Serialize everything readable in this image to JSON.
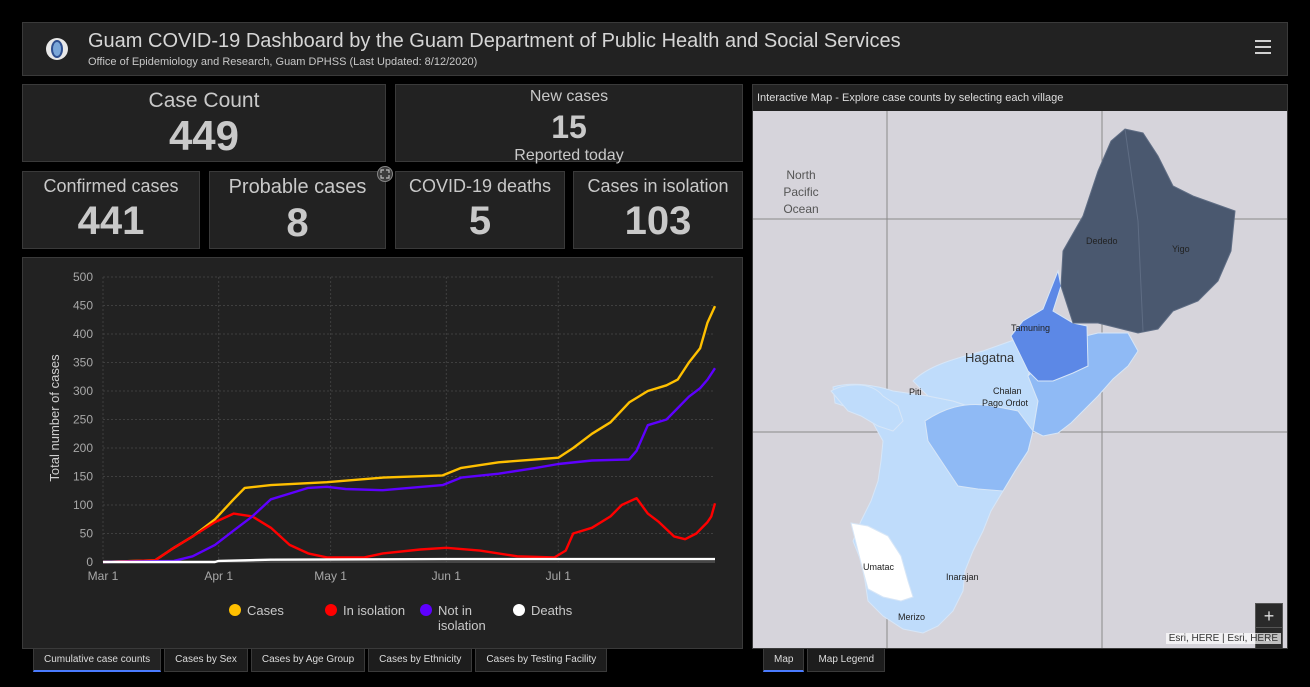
{
  "header": {
    "title": "Guam COVID-19 Dashboard by the Guam Department of Public Health and Social Services",
    "subtitle": "Office of Epidemiology and Research, Guam DPHSS (Last Updated: 8/12/2020)",
    "logo_icon": "guam-seal-icon",
    "menu_icon": "hamburger-menu-icon"
  },
  "indicators": {
    "case_count": {
      "label": "Case Count",
      "value": "449"
    },
    "new_cases": {
      "label": "New cases",
      "value": "15",
      "sublabel": "Reported today"
    },
    "confirmed": {
      "label": "Confirmed cases",
      "value": "441"
    },
    "probable": {
      "label": "Probable cases",
      "value": "8"
    },
    "deaths": {
      "label": "COVID-19 deaths",
      "value": "5"
    },
    "isolation": {
      "label": "Cases in isolation",
      "value": "103"
    }
  },
  "chart_data": {
    "type": "line",
    "title": "",
    "ylabel": "Total number of cases",
    "xlabel": "",
    "ylim": [
      0,
      500
    ],
    "yticks": [
      0,
      50,
      100,
      150,
      200,
      250,
      300,
      350,
      400,
      450,
      500
    ],
    "x_tick_labels": [
      "Mar 1",
      "Apr 1",
      "May 1",
      "Jun 1",
      "Jul 1"
    ],
    "x_tick_dates": [
      "2020-03-01",
      "2020-04-01",
      "2020-05-01",
      "2020-06-01",
      "2020-07-01"
    ],
    "xlim": [
      "2020-03-01",
      "2020-08-12"
    ],
    "grid": true,
    "legend_position": "bottom",
    "colors": {
      "cases": "#ffc000",
      "isolation": "#ff0000",
      "not_isolation": "#5e00ff",
      "deaths": "#ffffff"
    },
    "series": [
      {
        "name": "Cases",
        "key": "cases",
        "points": [
          [
            "2020-03-01",
            0
          ],
          [
            "2020-03-15",
            3
          ],
          [
            "2020-03-20",
            25
          ],
          [
            "2020-03-25",
            45
          ],
          [
            "2020-03-31",
            75
          ],
          [
            "2020-04-05",
            110
          ],
          [
            "2020-04-08",
            130
          ],
          [
            "2020-04-15",
            135
          ],
          [
            "2020-04-30",
            140
          ],
          [
            "2020-05-15",
            148
          ],
          [
            "2020-05-31",
            152
          ],
          [
            "2020-06-05",
            165
          ],
          [
            "2020-06-15",
            175
          ],
          [
            "2020-06-25",
            180
          ],
          [
            "2020-07-01",
            183
          ],
          [
            "2020-07-05",
            200
          ],
          [
            "2020-07-10",
            225
          ],
          [
            "2020-07-15",
            245
          ],
          [
            "2020-07-20",
            280
          ],
          [
            "2020-07-25",
            300
          ],
          [
            "2020-07-30",
            310
          ],
          [
            "2020-08-02",
            320
          ],
          [
            "2020-08-05",
            350
          ],
          [
            "2020-08-08",
            375
          ],
          [
            "2020-08-10",
            420
          ],
          [
            "2020-08-12",
            449
          ]
        ]
      },
      {
        "name": "In isolation",
        "key": "isolation",
        "points": [
          [
            "2020-03-01",
            0
          ],
          [
            "2020-03-15",
            3
          ],
          [
            "2020-03-20",
            25
          ],
          [
            "2020-03-25",
            45
          ],
          [
            "2020-03-31",
            70
          ],
          [
            "2020-04-05",
            85
          ],
          [
            "2020-04-10",
            80
          ],
          [
            "2020-04-15",
            60
          ],
          [
            "2020-04-20",
            30
          ],
          [
            "2020-04-25",
            15
          ],
          [
            "2020-04-30",
            8
          ],
          [
            "2020-05-10",
            8
          ],
          [
            "2020-05-15",
            15
          ],
          [
            "2020-05-25",
            22
          ],
          [
            "2020-06-01",
            25
          ],
          [
            "2020-06-10",
            20
          ],
          [
            "2020-06-20",
            10
          ],
          [
            "2020-06-30",
            8
          ],
          [
            "2020-07-03",
            20
          ],
          [
            "2020-07-05",
            50
          ],
          [
            "2020-07-10",
            60
          ],
          [
            "2020-07-15",
            80
          ],
          [
            "2020-07-18",
            100
          ],
          [
            "2020-07-22",
            112
          ],
          [
            "2020-07-25",
            85
          ],
          [
            "2020-07-28",
            70
          ],
          [
            "2020-08-01",
            45
          ],
          [
            "2020-08-04",
            40
          ],
          [
            "2020-08-07",
            50
          ],
          [
            "2020-08-10",
            70
          ],
          [
            "2020-08-11",
            80
          ],
          [
            "2020-08-12",
            103
          ]
        ]
      },
      {
        "name": "Not in isolation",
        "key": "not_isolation",
        "points": [
          [
            "2020-03-01",
            0
          ],
          [
            "2020-03-20",
            2
          ],
          [
            "2020-03-25",
            10
          ],
          [
            "2020-03-31",
            30
          ],
          [
            "2020-04-05",
            55
          ],
          [
            "2020-04-10",
            80
          ],
          [
            "2020-04-15",
            110
          ],
          [
            "2020-04-20",
            120
          ],
          [
            "2020-04-25",
            130
          ],
          [
            "2020-04-30",
            132
          ],
          [
            "2020-05-05",
            128
          ],
          [
            "2020-05-15",
            126
          ],
          [
            "2020-05-31",
            135
          ],
          [
            "2020-06-05",
            148
          ],
          [
            "2020-06-15",
            155
          ],
          [
            "2020-06-25",
            165
          ],
          [
            "2020-07-01",
            172
          ],
          [
            "2020-07-10",
            178
          ],
          [
            "2020-07-20",
            180
          ],
          [
            "2020-07-22",
            195
          ],
          [
            "2020-07-25",
            240
          ],
          [
            "2020-07-30",
            250
          ],
          [
            "2020-08-02",
            270
          ],
          [
            "2020-08-05",
            290
          ],
          [
            "2020-08-08",
            305
          ],
          [
            "2020-08-10",
            320
          ],
          [
            "2020-08-12",
            340
          ]
        ]
      },
      {
        "name": "Deaths",
        "key": "deaths",
        "points": [
          [
            "2020-03-01",
            0
          ],
          [
            "2020-03-31",
            0
          ],
          [
            "2020-04-01",
            2
          ],
          [
            "2020-04-15",
            4
          ],
          [
            "2020-05-31",
            5
          ],
          [
            "2020-08-12",
            5
          ]
        ]
      }
    ],
    "legend": [
      {
        "label": "Cases",
        "key": "cases"
      },
      {
        "label": "In isolation",
        "key": "isolation"
      },
      {
        "label": "Not in",
        "label2": "isolation",
        "key": "not_isolation"
      },
      {
        "label": "Deaths",
        "key": "deaths"
      }
    ]
  },
  "left_tabs": [
    {
      "label": "Cumulative case counts",
      "active": true
    },
    {
      "label": "Cases by Sex",
      "active": false
    },
    {
      "label": "Cases by Age Group",
      "active": false
    },
    {
      "label": "Cases by Ethnicity",
      "active": false
    },
    {
      "label": "Cases by Testing Facility",
      "active": false
    }
  ],
  "map": {
    "title": "Interactive Map - Explore case counts by selecting each village",
    "ocean_label_1": "North",
    "ocean_label_2": "Pacific",
    "ocean_label_3": "Ocean",
    "villages": {
      "dededo": "Dededo",
      "yigo": "Yigo",
      "tamuning": "Tamuning",
      "hagatna": "Hagatna",
      "chalan_1": "Chalan",
      "chalan_2": "Pago Ordot",
      "piti": "Piti",
      "umatac": "Umatac",
      "inarajan": "Inarajan",
      "merizo": "Merizo"
    },
    "zoom_in": "+",
    "zoom_out": "−",
    "attribution": "Esri, HERE | Esri, HERE",
    "colors": {
      "high": "#4a586f",
      "mid": "#5c88e6",
      "midlow": "#8fbaf5",
      "low": "#bfdcfb",
      "none": "#ffffff",
      "land": "#e3e1e6"
    }
  },
  "right_tabs": [
    {
      "label": "Map",
      "active": true
    },
    {
      "label": "Map Legend",
      "active": false
    }
  ]
}
